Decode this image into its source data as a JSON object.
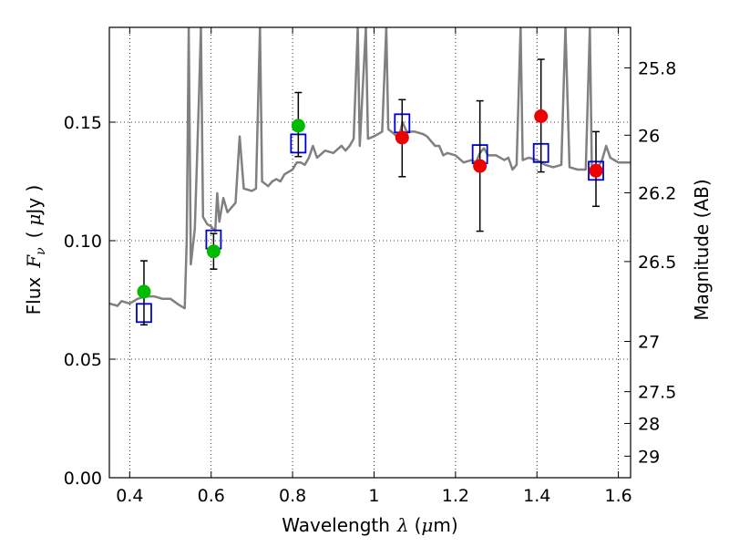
{
  "chart_data": {
    "type": "scatter",
    "xlabel": {
      "prefix": "Wavelength",
      "symbol": "λ",
      "unit_open": "(",
      "unit_mu": "μ",
      "unit_rest": "m)"
    },
    "ylabel": {
      "prefix": "Flux",
      "symbol": "F",
      "subscript": "ν",
      "unit_open": "(",
      "unit_mu": "μ",
      "unit_rest": "Jy )"
    },
    "y2label": "Magnitude (AB)",
    "xlim": [
      0.35,
      1.63
    ],
    "ylim": [
      0.0,
      0.19
    ],
    "grid": true,
    "x_ticks": [
      0.4,
      0.6,
      0.8,
      1.0,
      1.2,
      1.4,
      1.6
    ],
    "x_tick_labels": [
      "0.4",
      "0.6",
      "0.8",
      "1",
      "1.2",
      "1.4",
      "1.6"
    ],
    "y_ticks": [
      0.0,
      0.05,
      0.1,
      0.15
    ],
    "y_tick_labels": [
      "0.00",
      "0.05",
      "0.10",
      "0.15"
    ],
    "y2_ticks": [
      {
        "label": "25.8",
        "flux": 0.1729
      },
      {
        "label": "26",
        "flux": 0.1445
      },
      {
        "label": "26.2",
        "flux": 0.1202
      },
      {
        "label": "26.5",
        "flux": 0.0912
      },
      {
        "label": "27",
        "flux": 0.0575
      },
      {
        "label": "27.5",
        "flux": 0.0363
      },
      {
        "label": "28",
        "flux": 0.0229
      },
      {
        "label": "29",
        "flux": 0.0091
      }
    ],
    "series": [
      {
        "marker": "circle",
        "color": "#00bb00",
        "points": [
          {
            "x": 0.435,
            "y": 0.0785,
            "err_low": 0.0645,
            "err_high": 0.0915
          },
          {
            "x": 0.606,
            "y": 0.0955,
            "err_low": 0.088,
            "err_high": 0.103
          },
          {
            "x": 0.814,
            "y": 0.1485,
            "err_low": 0.1355,
            "err_high": 0.1625
          }
        ]
      },
      {
        "marker": "circle",
        "color": "#ee0000",
        "points": [
          {
            "x": 1.069,
            "y": 0.1435,
            "err_low": 0.127,
            "err_high": 0.1595
          },
          {
            "x": 1.26,
            "y": 0.1315,
            "err_low": 0.104,
            "err_high": 0.159
          },
          {
            "x": 1.41,
            "y": 0.1525,
            "err_low": 0.129,
            "err_high": 0.1765
          },
          {
            "x": 1.545,
            "y": 0.1295,
            "err_low": 0.1145,
            "err_high": 0.146
          }
        ]
      },
      {
        "marker": "open-square",
        "color": "#0000cc",
        "points": [
          {
            "x": 0.435,
            "y": 0.0695
          },
          {
            "x": 0.606,
            "y": 0.1005
          },
          {
            "x": 0.814,
            "y": 0.141
          },
          {
            "x": 1.069,
            "y": 0.1495
          },
          {
            "x": 1.26,
            "y": 0.1365
          },
          {
            "x": 1.41,
            "y": 0.137
          },
          {
            "x": 1.545,
            "y": 0.1295
          }
        ]
      },
      {
        "marker": "line",
        "color": "#808080",
        "points": [
          [
            0.35,
            0.0735
          ],
          [
            0.37,
            0.0725
          ],
          [
            0.38,
            0.0745
          ],
          [
            0.4,
            0.0735
          ],
          [
            0.42,
            0.0755
          ],
          [
            0.44,
            0.0765
          ],
          [
            0.46,
            0.0765
          ],
          [
            0.48,
            0.0755
          ],
          [
            0.5,
            0.0755
          ],
          [
            0.52,
            0.073
          ],
          [
            0.53,
            0.072
          ],
          [
            0.535,
            0.0715
          ],
          [
            0.54,
            0.1
          ],
          [
            0.545,
            0.19
          ],
          [
            0.55,
            0.09
          ],
          [
            0.56,
            0.105
          ],
          [
            0.57,
            0.16
          ],
          [
            0.575,
            0.19
          ],
          [
            0.58,
            0.11
          ],
          [
            0.59,
            0.107
          ],
          [
            0.6,
            0.106
          ],
          [
            0.61,
            0.104
          ],
          [
            0.615,
            0.12
          ],
          [
            0.62,
            0.108
          ],
          [
            0.63,
            0.118
          ],
          [
            0.64,
            0.112
          ],
          [
            0.66,
            0.116
          ],
          [
            0.67,
            0.144
          ],
          [
            0.68,
            0.122
          ],
          [
            0.7,
            0.121
          ],
          [
            0.71,
            0.122
          ],
          [
            0.72,
            0.19
          ],
          [
            0.725,
            0.125
          ],
          [
            0.74,
            0.123
          ],
          [
            0.75,
            0.125
          ],
          [
            0.76,
            0.126
          ],
          [
            0.77,
            0.125
          ],
          [
            0.78,
            0.128
          ],
          [
            0.8,
            0.13
          ],
          [
            0.81,
            0.133
          ],
          [
            0.82,
            0.133
          ],
          [
            0.83,
            0.132
          ],
          [
            0.84,
            0.135
          ],
          [
            0.85,
            0.14
          ],
          [
            0.86,
            0.135
          ],
          [
            0.88,
            0.138
          ],
          [
            0.9,
            0.137
          ],
          [
            0.92,
            0.14
          ],
          [
            0.93,
            0.138
          ],
          [
            0.94,
            0.14
          ],
          [
            0.95,
            0.143
          ],
          [
            0.96,
            0.19
          ],
          [
            0.965,
            0.14
          ],
          [
            0.98,
            0.19
          ],
          [
            0.985,
            0.143
          ],
          [
            1.0,
            0.144
          ],
          [
            1.02,
            0.146
          ],
          [
            1.03,
            0.19
          ],
          [
            1.035,
            0.147
          ],
          [
            1.05,
            0.145
          ],
          [
            1.06,
            0.143
          ],
          [
            1.07,
            0.15
          ],
          [
            1.08,
            0.146
          ],
          [
            1.1,
            0.146
          ],
          [
            1.12,
            0.145
          ],
          [
            1.13,
            0.144
          ],
          [
            1.14,
            0.142
          ],
          [
            1.15,
            0.14
          ],
          [
            1.16,
            0.14
          ],
          [
            1.17,
            0.136
          ],
          [
            1.18,
            0.137
          ],
          [
            1.2,
            0.136
          ],
          [
            1.22,
            0.133
          ],
          [
            1.24,
            0.134
          ],
          [
            1.25,
            0.133
          ],
          [
            1.26,
            0.137
          ],
          [
            1.27,
            0.139
          ],
          [
            1.28,
            0.136
          ],
          [
            1.3,
            0.136
          ],
          [
            1.32,
            0.134
          ],
          [
            1.33,
            0.135
          ],
          [
            1.34,
            0.13
          ],
          [
            1.35,
            0.132
          ],
          [
            1.36,
            0.19
          ],
          [
            1.365,
            0.134
          ],
          [
            1.38,
            0.135
          ],
          [
            1.4,
            0.134
          ],
          [
            1.42,
            0.132
          ],
          [
            1.44,
            0.131
          ],
          [
            1.46,
            0.132
          ],
          [
            1.47,
            0.19
          ],
          [
            1.48,
            0.131
          ],
          [
            1.5,
            0.13
          ],
          [
            1.52,
            0.13
          ],
          [
            1.53,
            0.19
          ],
          [
            1.535,
            0.13
          ],
          [
            1.55,
            0.131
          ],
          [
            1.56,
            0.134
          ],
          [
            1.57,
            0.14
          ],
          [
            1.58,
            0.135
          ],
          [
            1.6,
            0.133
          ],
          [
            1.63,
            0.133
          ]
        ]
      }
    ]
  }
}
